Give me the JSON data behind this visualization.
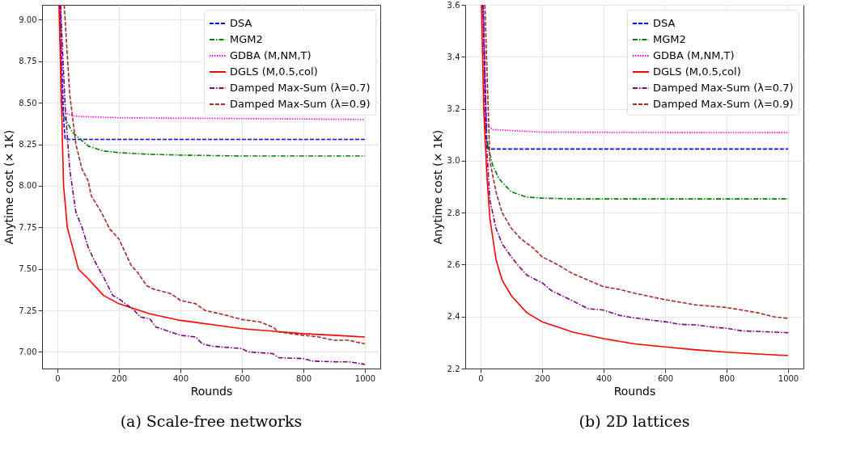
{
  "chart_data": [
    {
      "type": "line",
      "title": "(a) Scale-free networks",
      "xlabel": "Rounds",
      "ylabel": "Anytime cost (× 1K)",
      "xlim": [
        -50,
        1050
      ],
      "ylim": [
        6.9,
        9.09
      ],
      "xticks": [
        0,
        200,
        400,
        600,
        800,
        1000
      ],
      "yticks": [
        {
          "value": 7,
          "label": "7.00"
        },
        {
          "value": 7.25,
          "label": "7.25"
        },
        {
          "value": 7.5,
          "label": "7.50"
        },
        {
          "value": 7.75,
          "label": "7.75"
        },
        {
          "value": 8,
          "label": "8.00"
        },
        {
          "value": 8.25,
          "label": "8.25"
        },
        {
          "value": 8.5,
          "label": "8.50"
        },
        {
          "value": 8.75,
          "label": "8.75"
        },
        {
          "value": 9,
          "label": "9.00"
        }
      ],
      "grid": true,
      "legend": "top right",
      "series": [
        {
          "name": "DSA",
          "color": "#0000ff",
          "line_style": "dashed",
          "x": [
            8,
            20,
            25,
            100,
            1000
          ],
          "values": [
            9.09,
            8.4,
            8.28,
            8.28,
            8.28
          ]
        },
        {
          "name": "MGM2",
          "color": "#008000",
          "line_style": "dashdot",
          "x": [
            10,
            12,
            20,
            50,
            100,
            150,
            200,
            300,
            400,
            600,
            1000
          ],
          "values": [
            9.09,
            8.5,
            8.42,
            8.32,
            8.24,
            8.21,
            8.2,
            8.19,
            8.185,
            8.18,
            8.18
          ]
        },
        {
          "name": "GDBA (M,NM,T)",
          "color": "#ff00ff",
          "line_style": "dotted",
          "x": [
            11,
            15,
            50,
            200,
            1000
          ],
          "values": [
            9.09,
            8.45,
            8.42,
            8.41,
            8.4
          ]
        },
        {
          "name": "DGLS (M,0.5,col)",
          "color": "#ff0000",
          "line_style": "solid",
          "x": [
            5,
            20,
            32,
            68,
            100,
            150,
            200,
            300,
            400,
            500,
            600,
            700,
            800,
            900,
            1000
          ],
          "values": [
            9.09,
            8.0,
            7.75,
            7.5,
            7.44,
            7.34,
            7.29,
            7.23,
            7.19,
            7.165,
            7.14,
            7.125,
            7.11,
            7.1,
            7.09
          ]
        },
        {
          "name": "Damped Max-Sum (λ=0.7)",
          "color": "#800080",
          "line_style": "dashdot",
          "x": [
            10,
            25,
            40,
            60,
            80,
            100,
            120,
            150,
            180,
            200,
            250,
            270,
            300,
            320,
            400,
            450,
            470,
            500,
            600,
            620,
            700,
            720,
            800,
            830,
            900,
            950,
            1000
          ],
          "values": [
            9.09,
            8.48,
            8.1,
            7.84,
            7.75,
            7.63,
            7.55,
            7.45,
            7.34,
            7.32,
            7.25,
            7.21,
            7.2,
            7.15,
            7.1,
            7.09,
            7.05,
            7.035,
            7.02,
            7.0,
            6.99,
            6.965,
            6.96,
            6.945,
            6.94,
            6.94,
            6.925
          ]
        },
        {
          "name": "Damped Max-Sum (λ=0.9)",
          "color": "#a52a2a",
          "line_style": "dashed",
          "x": [
            22,
            40,
            60,
            80,
            100,
            110,
            140,
            170,
            200,
            220,
            240,
            260,
            290,
            310,
            370,
            400,
            450,
            480,
            550,
            600,
            660,
            700,
            720,
            800,
            850,
            900,
            950,
            970,
            1000
          ],
          "values": [
            9.09,
            8.55,
            8.25,
            8.1,
            8.03,
            7.94,
            7.85,
            7.74,
            7.68,
            7.6,
            7.52,
            7.48,
            7.4,
            7.38,
            7.35,
            7.31,
            7.29,
            7.25,
            7.22,
            7.195,
            7.18,
            7.15,
            7.12,
            7.1,
            7.09,
            7.07,
            7.07,
            7.06,
            7.05
          ]
        }
      ]
    },
    {
      "type": "line",
      "title": "(b) 2D lattices",
      "xlabel": "Rounds",
      "ylabel": "Anytime cost (× 1K)",
      "xlim": [
        -50,
        1050
      ],
      "ylim": [
        2.2,
        3.6
      ],
      "xticks": [
        0,
        200,
        400,
        600,
        800,
        1000
      ],
      "yticks": [
        {
          "value": 2.2,
          "label": "2.2"
        },
        {
          "value": 2.4,
          "label": "2.4"
        },
        {
          "value": 2.6,
          "label": "2.6"
        },
        {
          "value": 2.8,
          "label": "2.8"
        },
        {
          "value": 3,
          "label": "3.0"
        },
        {
          "value": 3.2,
          "label": "3.2"
        },
        {
          "value": 3.4,
          "label": "3.4"
        },
        {
          "value": 3.6,
          "label": "3.6"
        }
      ],
      "grid": true,
      "legend": "top right",
      "series": [
        {
          "name": "DSA",
          "color": "#0000ff",
          "line_style": "dashed",
          "x": [
            8,
            20,
            25,
            100,
            1000
          ],
          "values": [
            3.6,
            3.08,
            3.045,
            3.045,
            3.045
          ]
        },
        {
          "name": "MGM2",
          "color": "#008000",
          "line_style": "dashdot",
          "x": [
            8,
            15,
            25,
            40,
            60,
            100,
            150,
            200,
            300,
            1000
          ],
          "values": [
            3.6,
            3.1,
            3.05,
            2.98,
            2.93,
            2.88,
            2.86,
            2.856,
            2.853,
            2.853
          ]
        },
        {
          "name": "GDBA (M,NM,T)",
          "color": "#ff00ff",
          "line_style": "dotted",
          "x": [
            9,
            15,
            40,
            200,
            1000
          ],
          "values": [
            3.6,
            3.14,
            3.12,
            3.11,
            3.108
          ]
        },
        {
          "name": "DGLS (M,0.5,col)",
          "color": "#ff0000",
          "line_style": "solid",
          "x": [
            3,
            10,
            20,
            30,
            50,
            70,
            100,
            150,
            200,
            250,
            300,
            400,
            500,
            600,
            700,
            800,
            900,
            1000
          ],
          "values": [
            3.6,
            3.2,
            2.95,
            2.78,
            2.62,
            2.54,
            2.48,
            2.415,
            2.38,
            2.36,
            2.34,
            2.315,
            2.295,
            2.283,
            2.272,
            2.263,
            2.256,
            2.25
          ]
        },
        {
          "name": "Damped Max-Sum (λ=0.7)",
          "color": "#800080",
          "line_style": "dashdot",
          "x": [
            8,
            20,
            30,
            50,
            70,
            100,
            120,
            150,
            200,
            230,
            300,
            350,
            400,
            450,
            500,
            600,
            650,
            700,
            750,
            800,
            850,
            1000
          ],
          "values": [
            3.6,
            3.05,
            2.85,
            2.74,
            2.68,
            2.63,
            2.6,
            2.56,
            2.53,
            2.5,
            2.46,
            2.43,
            2.425,
            2.405,
            2.395,
            2.38,
            2.37,
            2.368,
            2.36,
            2.355,
            2.345,
            2.338
          ]
        },
        {
          "name": "Damped Max-Sum (λ=0.9)",
          "color": "#a52a2a",
          "line_style": "dashed",
          "x": [
            14,
            30,
            50,
            70,
            100,
            130,
            170,
            200,
            250,
            300,
            350,
            400,
            450,
            500,
            600,
            700,
            800,
            900,
            950,
            1000
          ],
          "values": [
            3.6,
            3.0,
            2.88,
            2.8,
            2.74,
            2.7,
            2.665,
            2.63,
            2.6,
            2.565,
            2.54,
            2.515,
            2.505,
            2.49,
            2.465,
            2.445,
            2.435,
            2.415,
            2.4,
            2.393
          ]
        }
      ]
    }
  ]
}
